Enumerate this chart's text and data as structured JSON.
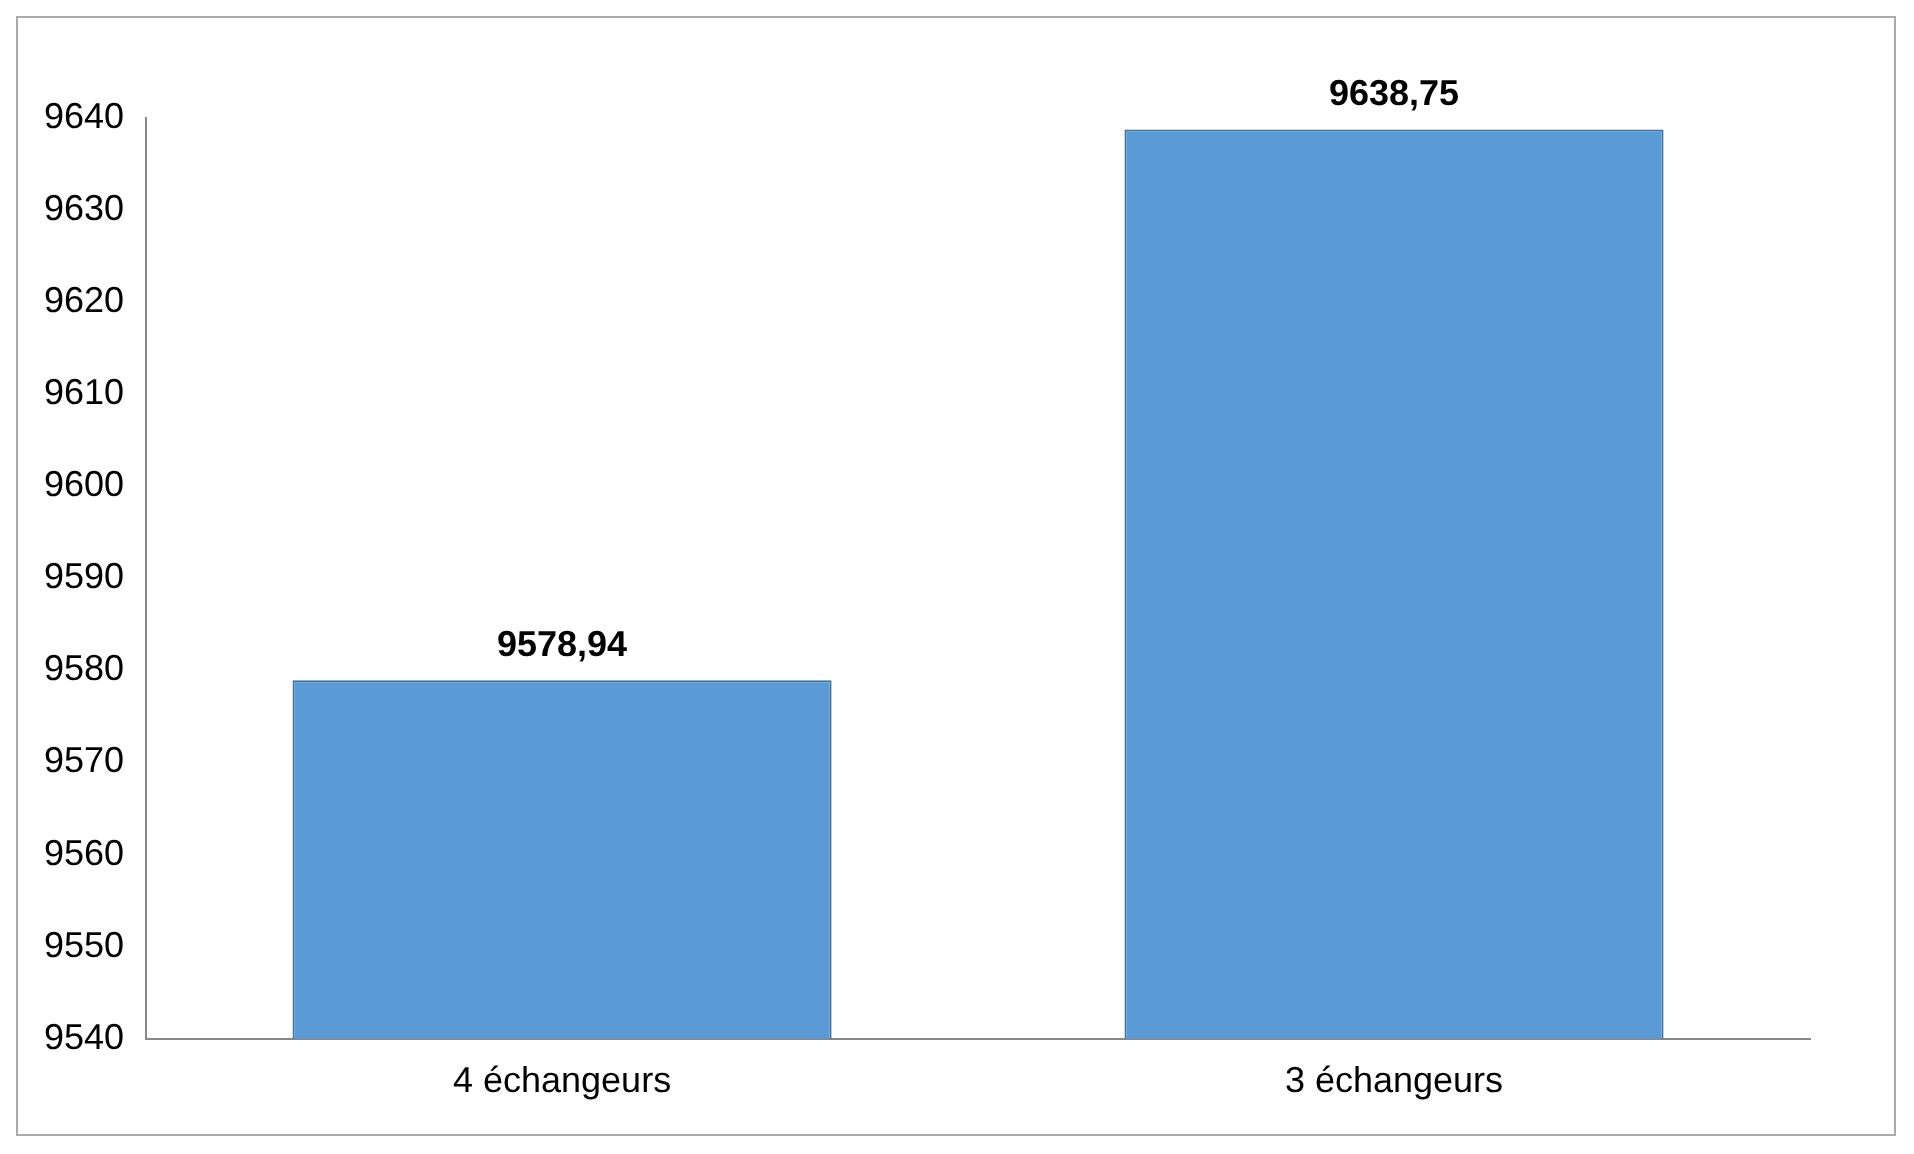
{
  "chart_data": {
    "type": "bar",
    "categories": [
      "4 échangeurs",
      "3 échangeurs"
    ],
    "values": [
      9578.94,
      9638.75
    ],
    "value_labels": [
      "9578,94",
      "9638,75"
    ],
    "color": "#5b9bd5",
    "ylim": [
      9540,
      9640
    ],
    "yticks": [
      9540,
      9550,
      9560,
      9570,
      9580,
      9590,
      9600,
      9610,
      9620,
      9630,
      9640
    ],
    "grid": false,
    "legend": false
  }
}
